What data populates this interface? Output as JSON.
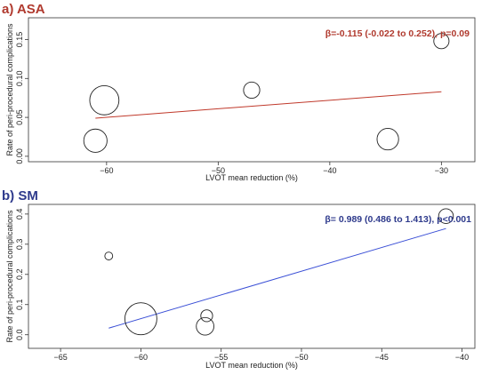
{
  "chart_data": [
    {
      "type": "scatter",
      "panel_label": "a) ASA",
      "title_color": "#b03a2e",
      "xlabel": "LVOT mean reduction (%)",
      "ylabel": "Rate of peri-procedural complications",
      "xlim": [
        -67,
        -27
      ],
      "ylim": [
        -0.007,
        0.178
      ],
      "xticks": [
        -60,
        -50,
        -40,
        -30
      ],
      "xtick_labels": [
        "−60",
        "−50",
        "−40",
        "−30"
      ],
      "yticks": [
        0.0,
        0.05,
        0.1,
        0.15
      ],
      "ytick_labels": [
        "0.00",
        "0.05",
        "0.10",
        "0.15"
      ],
      "points": [
        {
          "x": -60.2,
          "y": 0.072,
          "weight": 5.5
        },
        {
          "x": -61.0,
          "y": 0.02,
          "weight": 3.5
        },
        {
          "x": -47.0,
          "y": 0.085,
          "weight": 1.7
        },
        {
          "x": -34.8,
          "y": 0.022,
          "weight": 3.0
        },
        {
          "x": -30.0,
          "y": 0.148,
          "weight": 1.5
        }
      ],
      "regression": {
        "x": [
          -61,
          -30
        ],
        "y": [
          0.049,
          0.083
        ],
        "color": "#c0392b"
      },
      "annotation": "β=-0.115 (-0.022 to 0.252), p=0.09",
      "annotation_color": "#b03a2e",
      "grid": false
    },
    {
      "type": "scatter",
      "panel_label": "b) SM",
      "title_color": "#2e3a8c",
      "xlabel": "LVOT mean reduction (%)",
      "ylabel": "Rate of peri-procedural complications",
      "xlim": [
        -67,
        -39.2
      ],
      "ylim": [
        -0.045,
        0.432
      ],
      "xticks": [
        -65,
        -60,
        -55,
        -50,
        -45,
        -40
      ],
      "xtick_labels": [
        "−65",
        "−60",
        "−55",
        "−50",
        "−45",
        "−40"
      ],
      "yticks": [
        0.0,
        0.1,
        0.2,
        0.3,
        0.4
      ],
      "ytick_labels": [
        "0.0",
        "0.1",
        "0.2",
        "0.3",
        "0.4"
      ],
      "points": [
        {
          "x": -62.0,
          "y": 0.261,
          "weight": 0.4
        },
        {
          "x": -60.0,
          "y": 0.053,
          "weight": 6.6
        },
        {
          "x": -56.0,
          "y": 0.028,
          "weight": 2.0
        },
        {
          "x": -55.9,
          "y": 0.063,
          "weight": 0.9
        },
        {
          "x": -41.0,
          "y": 0.393,
          "weight": 1.4
        }
      ],
      "regression": {
        "x": [
          -62,
          -41
        ],
        "y": [
          0.022,
          0.352
        ],
        "color": "#3a4fd6"
      },
      "annotation": "β= 0.989 (0.486 to 1.413), p<0.001",
      "annotation_color": "#2e3a8c",
      "grid": false
    }
  ]
}
